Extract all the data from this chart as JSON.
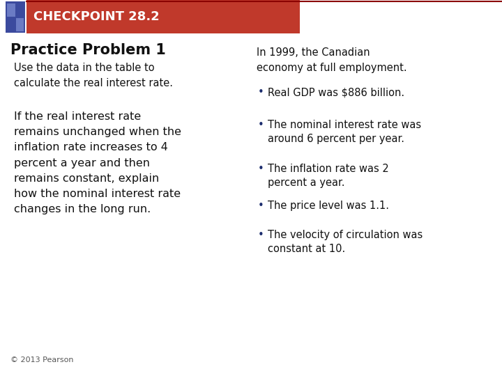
{
  "title": "CHECKPOINT 28.2",
  "title_bg_color": "#C0392B",
  "title_text_color": "#FFFFFF",
  "icon_color1": "#3B4A9E",
  "icon_color2": "#6B7BC4",
  "bg_color": "#FFFFFF",
  "header_line_color": "#8B0000",
  "practice_problem_title": "Practice Problem 1",
  "left_text_intro": "Use the data in the table to\ncalculate the real interest rate.",
  "left_text_body": "If the real interest rate\nremains unchanged when the\ninflation rate increases to 4\npercent a year and then\nremains constant, explain\nhow the nominal interest rate\nchanges in the long run.",
  "right_text_intro": "In 1999, the Canadian\neconomy at full employment.",
  "bullet_points": [
    "Real GDP was $886 billion.",
    "The nominal interest rate was\naround 6 percent per year.",
    "The inflation rate was 2\npercent a year.",
    "The price level was 1.1.",
    "The velocity of circulation was\nconstant at 10."
  ],
  "footer_text": "© 2013 Pearson",
  "text_color_dark": "#111111",
  "text_color_bullet": "#1C2D6E",
  "practice_title_fontsize": 15,
  "intro_fontsize": 10.5,
  "body_fontsize": 11.5,
  "bullet_fontsize": 10.5,
  "footer_fontsize": 8
}
